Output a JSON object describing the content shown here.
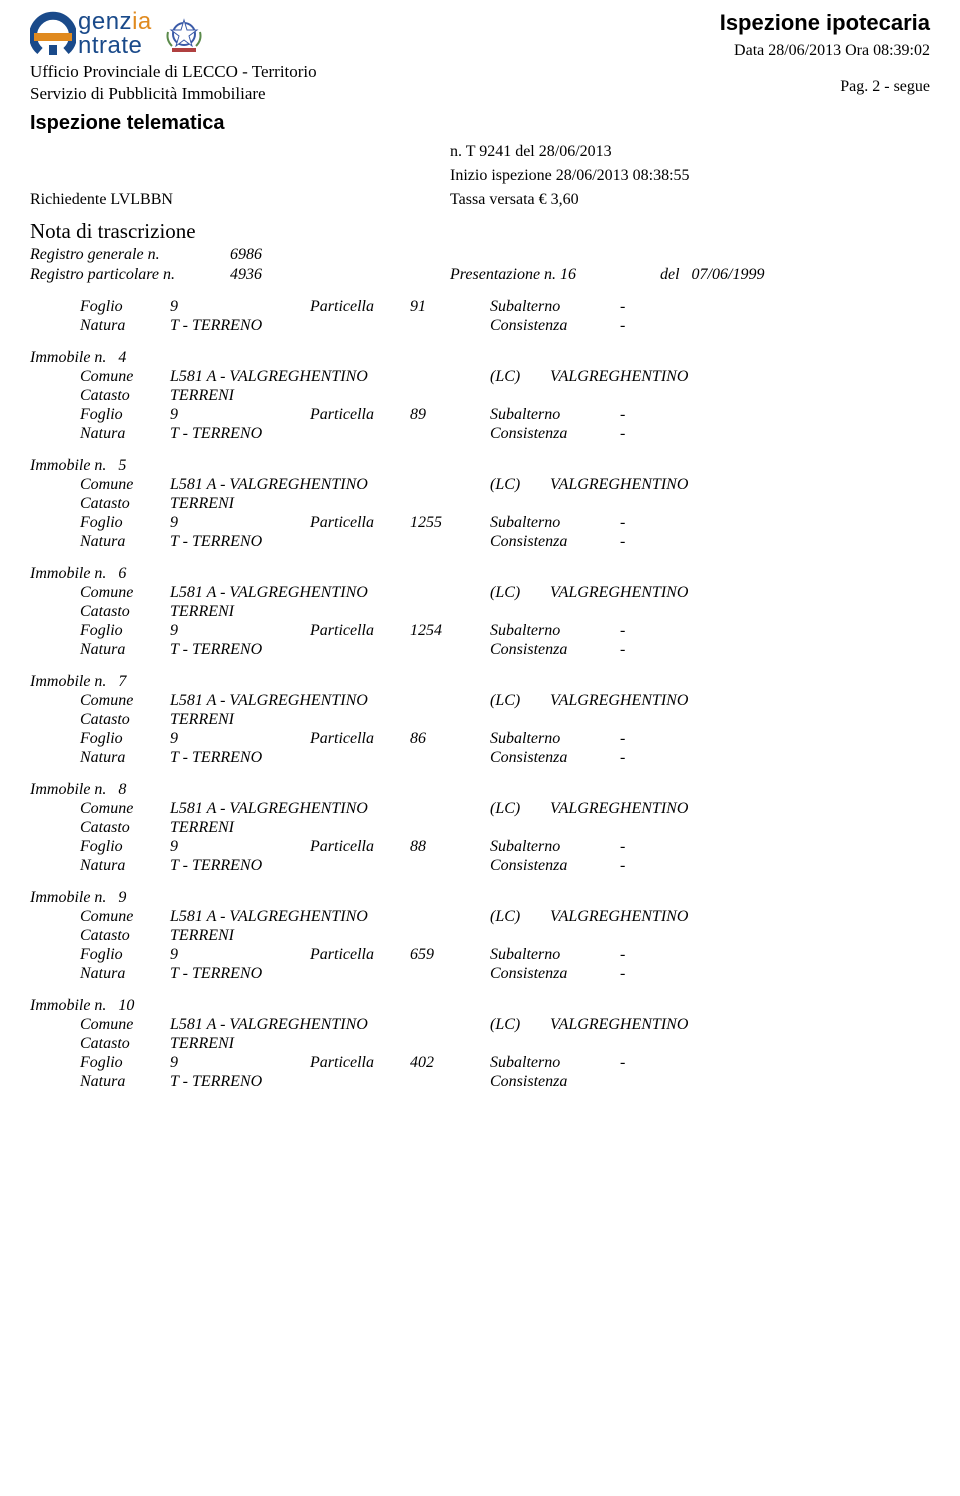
{
  "header": {
    "logo_line1_g": "g",
    "logo_line1_enz": "enz",
    "logo_line1_ia": "ia",
    "logo_line2": "ntrate",
    "doc_title": "Ispezione ipotecaria",
    "ufficio": "Ufficio Provinciale di LECCO - Territorio",
    "servizio": "Servizio di Pubblicità Immobiliare",
    "data_ora": "Data 28/06/2013 Ora 08:39:02",
    "pag": "Pag. 2 - segue"
  },
  "ispezione": {
    "title": "Ispezione telematica",
    "n_line": "n. T 9241 del 28/06/2013",
    "inizio": "Inizio ispezione 28/06/2013 08:38:55",
    "richiedente_label": "Richiedente LVLBBN",
    "tassa": "Tassa versata € 3,60"
  },
  "nota": {
    "title": "Nota di trascrizione",
    "reg_gen_label": "Registro generale n.",
    "reg_gen_val": "6986",
    "reg_part_label": "Registro particolare n.",
    "reg_part_val": "4936",
    "pres_label": "Presentazione n. 16",
    "del_label": "del",
    "del_val": "07/06/1999"
  },
  "labels": {
    "immobile": "Immobile n.",
    "comune": "Comune",
    "catasto": "Catasto",
    "foglio": "Foglio",
    "particella": "Particella",
    "natura": "Natura",
    "subalterno": "Subalterno",
    "consistenza": "Consistenza",
    "dash": "-"
  },
  "common": {
    "comune_code": "L581 A - VALGREGHENTINO",
    "prov": "(LC)",
    "loc": "VALGREGHENTINO",
    "catasto_val": "TERRENI",
    "foglio_val": "9",
    "natura_val": "T - TERRENO"
  },
  "first_row": {
    "particella": "91"
  },
  "immobili": [
    {
      "n": "4",
      "particella": "89"
    },
    {
      "n": "5",
      "particella": "1255"
    },
    {
      "n": "6",
      "particella": "1254"
    },
    {
      "n": "7",
      "particella": "86"
    },
    {
      "n": "8",
      "particella": "88"
    },
    {
      "n": "9",
      "particella": "659"
    },
    {
      "n": "10",
      "particella": "402"
    }
  ]
}
